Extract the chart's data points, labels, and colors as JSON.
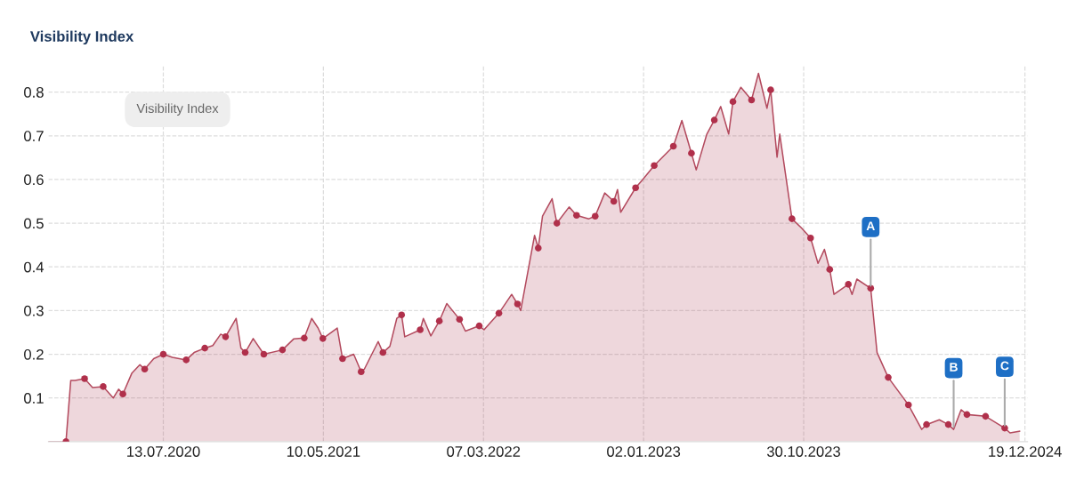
{
  "chart_data": {
    "type": "area",
    "title": "Visibility Index",
    "annotations": [
      "Visibility Index",
      {
        "text": "A",
        "x": "2024-03-04",
        "y": 0.351
      },
      {
        "text": "B",
        "x": "2024-08-07",
        "y": 0.028
      },
      {
        "text": "C",
        "x": "2024-11-11",
        "y": 0.031
      }
    ],
    "series": [
      {
        "color": "#b34a5e",
        "x": [
          "2019-12-10",
          "2020-01-12",
          "2020-01-21",
          "2020-01-29",
          "2020-02-16",
          "2020-03-02",
          "2020-03-22",
          "2020-04-10",
          "2020-04-20",
          "2020-04-28",
          "2020-05-15",
          "2020-05-30",
          "2020-06-08",
          "2020-06-25",
          "2020-07-13",
          "2020-07-30",
          "2020-08-25",
          "2020-09-09",
          "2020-09-29",
          "2020-10-14",
          "2020-10-29",
          "2020-11-07",
          "2020-11-27",
          "2020-12-06",
          "2020-12-14",
          "2020-12-29",
          "2021-01-18",
          "2021-02-22",
          "2021-03-15",
          "2021-04-04",
          "2021-04-18",
          "2021-04-30",
          "2021-05-09",
          "2021-06-05",
          "2021-06-15",
          "2021-07-06",
          "2021-07-20",
          "2021-07-26",
          "2021-08-21",
          "2021-08-30",
          "2021-09-12",
          "2021-09-25",
          "2021-10-04",
          "2021-10-10",
          "2021-11-08",
          "2021-11-14",
          "2021-11-28",
          "2021-12-14",
          "2021-12-28",
          "2022-01-21",
          "2022-02-01",
          "2022-02-27",
          "2022-03-08",
          "2022-04-05",
          "2022-04-29",
          "2022-05-10",
          "2022-05-16",
          "2022-06-11",
          "2022-06-18",
          "2022-06-26",
          "2022-07-14",
          "2022-07-23",
          "2022-08-15",
          "2022-08-29",
          "2022-09-21",
          "2022-10-03",
          "2022-10-21",
          "2022-11-07",
          "2022-11-14",
          "2022-11-20",
          "2022-12-18",
          "2022-12-30",
          "2023-01-22",
          "2023-02-27",
          "2023-03-15",
          "2023-04-02",
          "2023-04-11",
          "2023-05-01",
          "2023-05-15",
          "2023-05-27",
          "2023-06-11",
          "2023-06-19",
          "2023-07-04",
          "2023-07-24",
          "2023-08-06",
          "2023-08-22",
          "2023-08-29",
          "2023-09-10",
          "2023-09-15",
          "2023-10-08",
          "2023-10-26",
          "2023-11-12",
          "2023-11-26",
          "2023-12-08",
          "2023-12-18",
          "2023-12-26",
          "2024-01-22",
          "2024-01-29",
          "2024-02-07",
          "2024-03-04",
          "2024-03-16",
          "2024-04-06",
          "2024-05-14",
          "2024-06-08",
          "2024-06-17",
          "2024-07-11",
          "2024-07-28",
          "2024-08-07",
          "2024-08-21",
          "2024-09-01",
          "2024-10-06",
          "2024-11-11",
          "2024-11-21",
          "2024-12-09"
        ],
        "values": [
          0,
          0,
          0.14,
          0.14,
          0.144,
          0.124,
          0.126,
          0.1,
          0.12,
          0.109,
          0.157,
          0.176,
          0.166,
          0.19,
          0.2,
          0.193,
          0.187,
          0.204,
          0.214,
          0.22,
          0.246,
          0.24,
          0.282,
          0.214,
          0.204,
          0.236,
          0.2,
          0.21,
          0.235,
          0.237,
          0.282,
          0.26,
          0.236,
          0.26,
          0.19,
          0.2,
          0.16,
          0.166,
          0.229,
          0.204,
          0.218,
          0.282,
          0.29,
          0.24,
          0.256,
          0.282,
          0.242,
          0.276,
          0.316,
          0.28,
          0.253,
          0.265,
          0.256,
          0.294,
          0.337,
          0.315,
          0.3,
          0.472,
          0.443,
          0.516,
          0.556,
          0.5,
          0.537,
          0.518,
          0.51,
          0.516,
          0.569,
          0.55,
          0.577,
          0.525,
          0.581,
          0.598,
          0.632,
          0.676,
          0.735,
          0.66,
          0.622,
          0.704,
          0.736,
          0.767,
          0.704,
          0.778,
          0.811,
          0.782,
          0.843,
          0.763,
          0.805,
          0.651,
          0.704,
          0.51,
          0.489,
          0.466,
          0.408,
          0.44,
          0.394,
          0.337,
          0.36,
          0.337,
          0.372,
          0.351,
          0.204,
          0.147,
          0.084,
          0.028,
          0.039,
          0.05,
          0.039,
          0.028,
          0.073,
          0.062,
          0.058,
          0.031,
          0.02,
          0.024
        ]
      },
      {
        "type": "scatter",
        "color": "#b0304b",
        "marker": "circle",
        "x": [
          "2020-01-12",
          "2020-02-16",
          "2020-03-22",
          "2020-04-28",
          "2020-06-08",
          "2020-07-13",
          "2020-08-25",
          "2020-09-29",
          "2020-11-07",
          "2020-12-14",
          "2021-01-18",
          "2021-02-22",
          "2021-04-04",
          "2021-05-09",
          "2021-06-15",
          "2021-07-20",
          "2021-08-30",
          "2021-10-04",
          "2021-11-08",
          "2021-12-14",
          "2022-01-21",
          "2022-02-27",
          "2022-04-05",
          "2022-05-10",
          "2022-06-18",
          "2022-07-23",
          "2022-08-29",
          "2022-10-03",
          "2022-11-07",
          "2022-12-18",
          "2023-01-22",
          "2023-02-27",
          "2023-04-02",
          "2023-05-15",
          "2023-06-19",
          "2023-07-24",
          "2023-08-29",
          "2023-10-08",
          "2023-11-12",
          "2023-12-18",
          "2024-01-22",
          "2024-03-04",
          "2024-04-06",
          "2024-05-14",
          "2024-06-17",
          "2024-07-28",
          "2024-09-01",
          "2024-10-06",
          "2024-11-11"
        ],
        "values": [
          0,
          0.144,
          0.126,
          0.109,
          0.166,
          0.2,
          0.187,
          0.214,
          0.24,
          0.204,
          0.2,
          0.21,
          0.237,
          0.236,
          0.19,
          0.16,
          0.204,
          0.29,
          0.256,
          0.276,
          0.28,
          0.265,
          0.294,
          0.315,
          0.443,
          0.5,
          0.518,
          0.516,
          0.55,
          0.581,
          0.632,
          0.676,
          0.66,
          0.736,
          0.778,
          0.782,
          0.805,
          0.51,
          0.466,
          0.394,
          0.36,
          0.351,
          0.147,
          0.084,
          0.039,
          0.039,
          0.062,
          0.058,
          0.031
        ]
      }
    ],
    "xlim": [
      "2019-12-10",
      "2024-12-24"
    ],
    "xticks": [
      {
        "value": "2020-07-13",
        "label": "13.07.2020"
      },
      {
        "value": "2021-05-10",
        "label": "10.05.2021"
      },
      {
        "value": "2022-03-07",
        "label": "07.03.2022"
      },
      {
        "value": "2023-01-02",
        "label": "02.01.2023"
      },
      {
        "value": "2023-10-30",
        "label": "30.10.2023"
      },
      {
        "value": "2024-12-19",
        "label": "19.12.2024"
      }
    ],
    "ylim": [
      0,
      0.86
    ],
    "yticks": [
      0.1,
      0.2,
      0.3,
      0.4,
      0.5,
      0.6,
      0.7,
      0.8
    ],
    "grid": true,
    "line_style": "solid"
  }
}
